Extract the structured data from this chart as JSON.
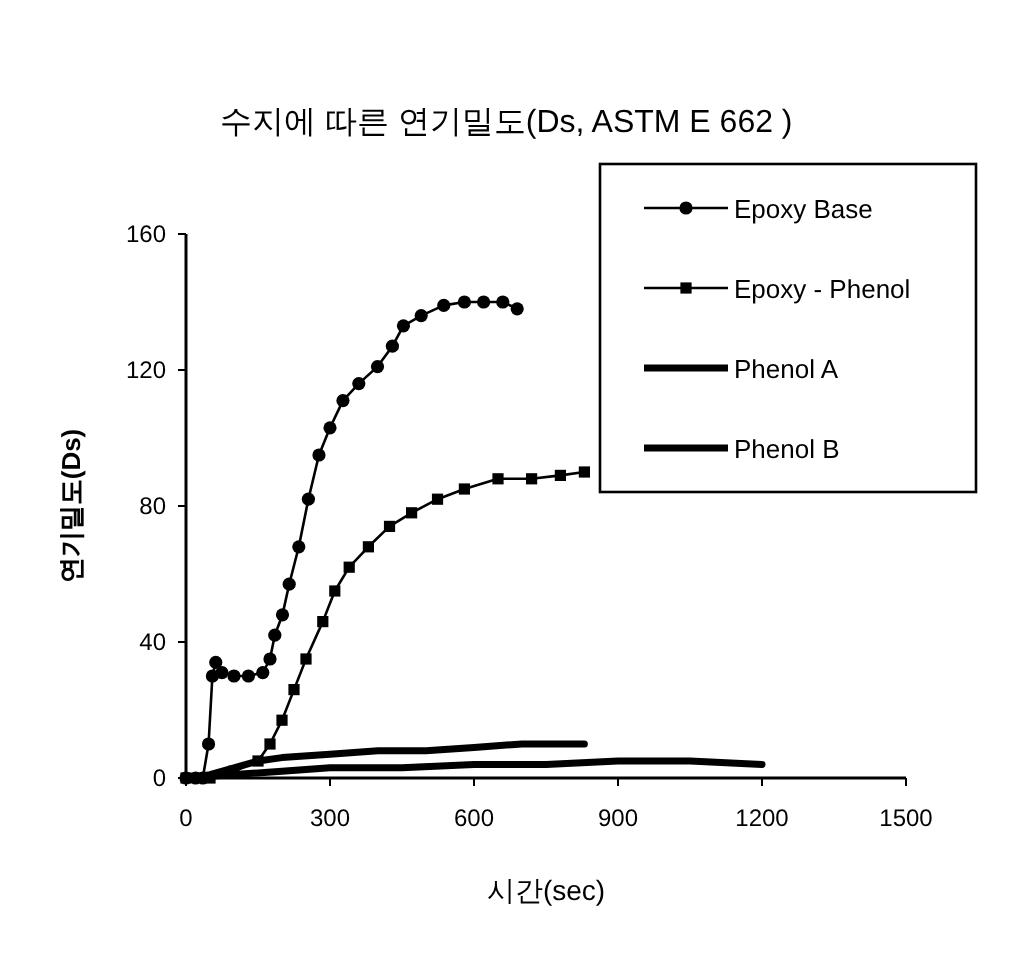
{
  "chart_data": {
    "type": "line",
    "title": "수지에 따른 연기밀도(Ds, ASTM E 662 )",
    "xlabel": "시간(sec)",
    "ylabel": "연기밀도(Ds)",
    "xlim": [
      0,
      1500
    ],
    "xticks": [
      0,
      300,
      600,
      900,
      1200,
      1500
    ],
    "ylim": [
      0,
      160
    ],
    "yticks": [
      0,
      40,
      80,
      120,
      160
    ],
    "grid": false,
    "legend": "top right",
    "series": [
      {
        "name": "Epoxy Base",
        "color": "#000000",
        "marker": "circle",
        "x": [
          0,
          20,
          35,
          47,
          55,
          62,
          75,
          100,
          130,
          160,
          175,
          185,
          201,
          215,
          235,
          255,
          277,
          300,
          327,
          360,
          399,
          430,
          453,
          490,
          537,
          580,
          620,
          660,
          690
        ],
        "values": [
          0,
          0,
          0,
          10,
          30,
          34,
          31,
          30,
          30,
          31,
          35,
          42,
          48,
          57,
          68,
          82,
          95,
          103,
          111,
          116,
          121,
          127,
          133,
          136,
          139,
          140,
          140,
          140,
          138
        ]
      },
      {
        "name": "Epoxy - Phenol",
        "color": "#000000",
        "marker": "square",
        "x": [
          0,
          50,
          100,
          150,
          175,
          200,
          225,
          250,
          285,
          310,
          340,
          380,
          424,
          470,
          524,
          580,
          650,
          720,
          780,
          830
        ],
        "values": [
          0,
          0,
          2,
          5,
          10,
          17,
          26,
          35,
          46,
          55,
          62,
          68,
          74,
          78,
          82,
          85,
          88,
          88,
          89,
          90
        ]
      },
      {
        "name": "Phenol A",
        "color": "#000000",
        "marker": "none",
        "x": [
          0,
          50,
          100,
          150,
          200,
          300,
          400,
          500,
          600,
          700,
          830
        ],
        "values": [
          0,
          1,
          3,
          5,
          6,
          7,
          8,
          8,
          9,
          10,
          10
        ]
      },
      {
        "name": "Phenol B",
        "color": "#000000",
        "marker": "none",
        "x": [
          0,
          100,
          200,
          300,
          450,
          600,
          750,
          900,
          1050,
          1200
        ],
        "values": [
          0,
          1,
          2,
          3,
          3,
          4,
          4,
          5,
          5,
          4
        ]
      }
    ]
  }
}
